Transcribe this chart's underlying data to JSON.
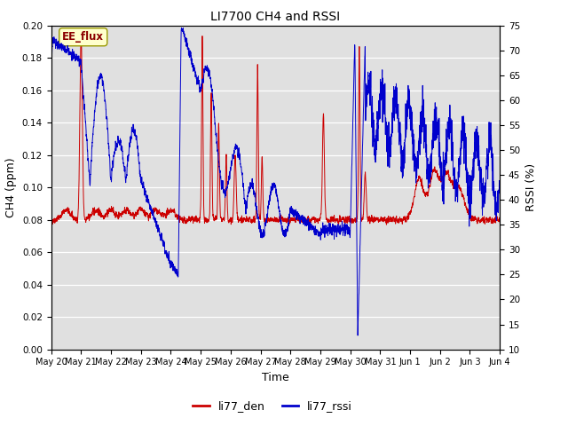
{
  "title": "LI7700 CH4 and RSSI",
  "ylabel_left": "CH4 (ppm)",
  "ylabel_right": "RSSI (%)",
  "xlabel": "Time",
  "ylim_left": [
    0.0,
    0.2
  ],
  "ylim_right": [
    10,
    75
  ],
  "yticks_left": [
    0.0,
    0.02,
    0.04,
    0.06,
    0.08,
    0.1,
    0.12,
    0.14,
    0.16,
    0.18,
    0.2
  ],
  "yticks_right": [
    10,
    15,
    20,
    25,
    30,
    35,
    40,
    45,
    50,
    55,
    60,
    65,
    70,
    75
  ],
  "color_ch4": "#cc0000",
  "color_rssi": "#0000cc",
  "bg_color": "#e0e0e0",
  "annotation_text": "EE_flux",
  "legend_labels": [
    "li77_den",
    "li77_rssi"
  ],
  "x_tick_labels": [
    "May 20",
    "May 21",
    "May 22",
    "May 23",
    "May 24",
    "May 25",
    "May 26",
    "May 27",
    "May 28",
    "May 29",
    "May 30",
    "May 31",
    "Jun 1",
    "Jun 2",
    "Jun 3",
    "Jun 4"
  ],
  "num_days": 15
}
